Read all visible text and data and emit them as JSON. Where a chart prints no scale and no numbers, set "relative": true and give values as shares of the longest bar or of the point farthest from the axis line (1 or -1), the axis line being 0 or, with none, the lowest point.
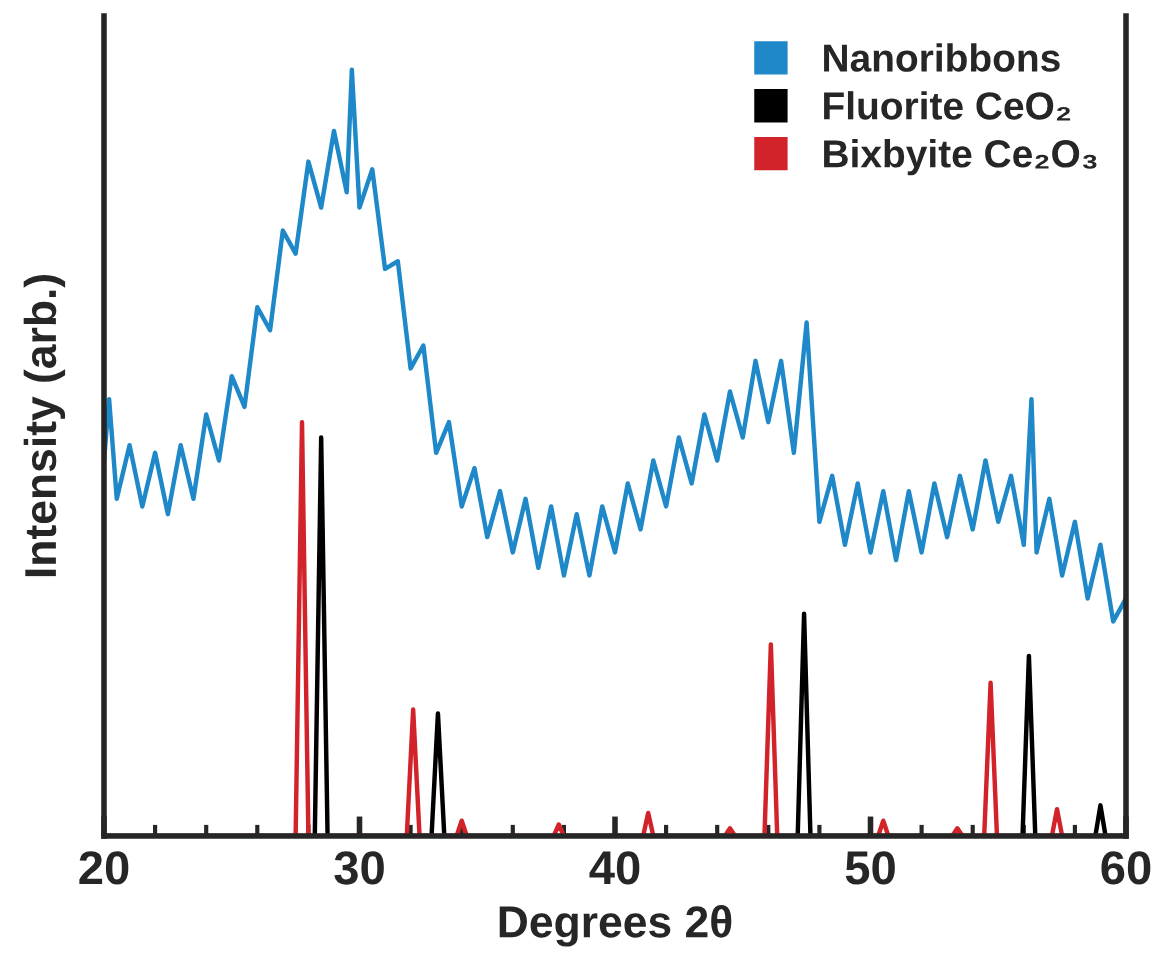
{
  "chart_data": {
    "type": "line",
    "relative": true,
    "xlabel": "Degrees 2θ",
    "ylabel": "Intensity (arb.)",
    "xlim": [
      20,
      60
    ],
    "xticks": [
      20,
      30,
      40,
      50,
      60
    ],
    "legend": "top right",
    "grid": false,
    "marker": "none",
    "line_style": "solid",
    "series": [
      {
        "name": "Nanoribbons",
        "color": "#1f88c9",
        "x": [
          20,
          20.2,
          20.5,
          21,
          21.5,
          22,
          22.5,
          23,
          23.5,
          24,
          24.5,
          25,
          25.5,
          26,
          26.5,
          27,
          27.5,
          28,
          28.5,
          29,
          29.5,
          29.7,
          30,
          30.5,
          31,
          31.5,
          32,
          32.5,
          33,
          33.5,
          34,
          34.5,
          35,
          35.5,
          36,
          36.5,
          37,
          37.5,
          38,
          38.5,
          39,
          39.5,
          40,
          40.5,
          41,
          41.5,
          42,
          42.5,
          43,
          43.5,
          44,
          44.5,
          45,
          45.5,
          46,
          46.5,
          47,
          47.5,
          48,
          48.5,
          49,
          49.5,
          50,
          50.5,
          51,
          51.5,
          52,
          52.5,
          53,
          53.5,
          54,
          54.5,
          55,
          55.5,
          56,
          56.3,
          56.5,
          57,
          57.5,
          58,
          58.5,
          59,
          59.5,
          60
        ],
        "values": [
          0.49,
          0.57,
          0.44,
          0.51,
          0.43,
          0.5,
          0.42,
          0.51,
          0.44,
          0.55,
          0.49,
          0.6,
          0.56,
          0.69,
          0.66,
          0.79,
          0.76,
          0.88,
          0.82,
          0.92,
          0.84,
          1.0,
          0.82,
          0.87,
          0.74,
          0.75,
          0.61,
          0.64,
          0.5,
          0.54,
          0.43,
          0.48,
          0.39,
          0.45,
          0.37,
          0.44,
          0.35,
          0.43,
          0.34,
          0.42,
          0.34,
          0.43,
          0.37,
          0.46,
          0.4,
          0.49,
          0.43,
          0.52,
          0.46,
          0.55,
          0.49,
          0.58,
          0.52,
          0.62,
          0.54,
          0.62,
          0.5,
          0.67,
          0.41,
          0.47,
          0.38,
          0.46,
          0.37,
          0.45,
          0.36,
          0.45,
          0.37,
          0.46,
          0.39,
          0.47,
          0.4,
          0.49,
          0.41,
          0.47,
          0.38,
          0.57,
          0.37,
          0.44,
          0.34,
          0.41,
          0.31,
          0.38,
          0.28,
          0.31
        ]
      },
      {
        "name": "Fluorite CeO₂",
        "color": "#000000",
        "x": [
          20,
          28.25,
          28.5,
          28.75,
          32.82,
          33.07,
          33.32,
          47.15,
          47.4,
          47.65,
          55.95,
          56.2,
          56.45,
          58.8,
          59.0,
          59.2,
          60
        ],
        "values": [
          0,
          0,
          0.52,
          0,
          0,
          0.16,
          0,
          0,
          0.29,
          0,
          0,
          0.235,
          0,
          0,
          0.04,
          0,
          0
        ]
      },
      {
        "name": "Bixbyite Ce₂O₃",
        "color": "#d2232a",
        "x": [
          20,
          27.5,
          27.75,
          28.0,
          31.85,
          32.1,
          32.35,
          33.8,
          34.0,
          34.2,
          37.6,
          37.8,
          38.0,
          41.1,
          41.3,
          41.5,
          44.3,
          44.5,
          44.7,
          45.85,
          46.1,
          46.35,
          50.3,
          50.5,
          50.7,
          53.2,
          53.4,
          53.6,
          54.45,
          54.7,
          54.95,
          57.1,
          57.3,
          57.5,
          60
        ],
        "values": [
          0,
          0,
          0.54,
          0,
          0,
          0.165,
          0,
          0,
          0.02,
          0,
          0,
          0.015,
          0,
          0,
          0.03,
          0,
          0,
          0.01,
          0,
          0,
          0.25,
          0,
          0,
          0.02,
          0,
          0,
          0.01,
          0,
          0,
          0.2,
          0,
          0,
          0.035,
          0,
          0
        ]
      }
    ]
  }
}
